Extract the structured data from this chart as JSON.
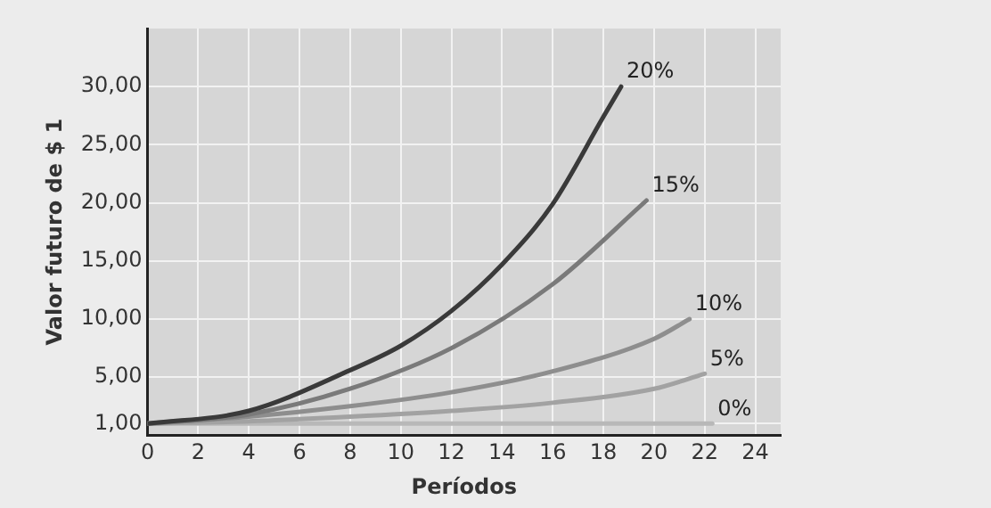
{
  "chart_data": {
    "type": "line",
    "xlabel": "Períodos",
    "ylabel": "Valor futuro de $ 1",
    "xlim": [
      0,
      25
    ],
    "xticks": [
      0,
      2,
      4,
      6,
      8,
      10,
      12,
      14,
      16,
      18,
      20,
      22,
      24
    ],
    "ylim": [
      0,
      35
    ],
    "yticks": [
      {
        "value": 1,
        "label": "1,00"
      },
      {
        "value": 5,
        "label": "5,00"
      },
      {
        "value": 10,
        "label": "10,00"
      },
      {
        "value": 15,
        "label": "15,00"
      },
      {
        "value": 20,
        "label": "20,00"
      },
      {
        "value": 25,
        "label": "25,00"
      },
      {
        "value": 30,
        "label": "30,00"
      }
    ],
    "grid": true,
    "legend": false,
    "marker": "none",
    "line_style": "solid",
    "series": [
      {
        "name": "20%",
        "color": "#3a3a3a",
        "x": [
          0,
          4,
          8,
          10,
          12,
          14,
          16,
          18,
          18.7
        ],
        "values": [
          1,
          2.1,
          5.6,
          7.7,
          10.7,
          14.7,
          19.9,
          27.4,
          30
        ]
      },
      {
        "name": "15%",
        "color": "#7a7a7a",
        "x": [
          0,
          4,
          8,
          12,
          16,
          19.7
        ],
        "values": [
          1,
          1.8,
          4,
          7.5,
          13,
          20.2
        ]
      },
      {
        "name": "10%",
        "color": "#8e8e8e",
        "x": [
          0,
          4,
          8,
          12,
          16,
          20,
          21.4
        ],
        "values": [
          1,
          1.6,
          2.5,
          3.7,
          5.5,
          8.3,
          10
        ]
      },
      {
        "name": "5%",
        "color": "#a2a2a2",
        "x": [
          0,
          4,
          8,
          12,
          16,
          20,
          22
        ],
        "values": [
          1,
          1.2,
          1.6,
          2.1,
          2.8,
          4,
          5.3
        ]
      },
      {
        "name": "0%",
        "color": "#b8b8b8",
        "x": [
          0,
          22.3
        ],
        "values": [
          1,
          1
        ]
      }
    ]
  }
}
